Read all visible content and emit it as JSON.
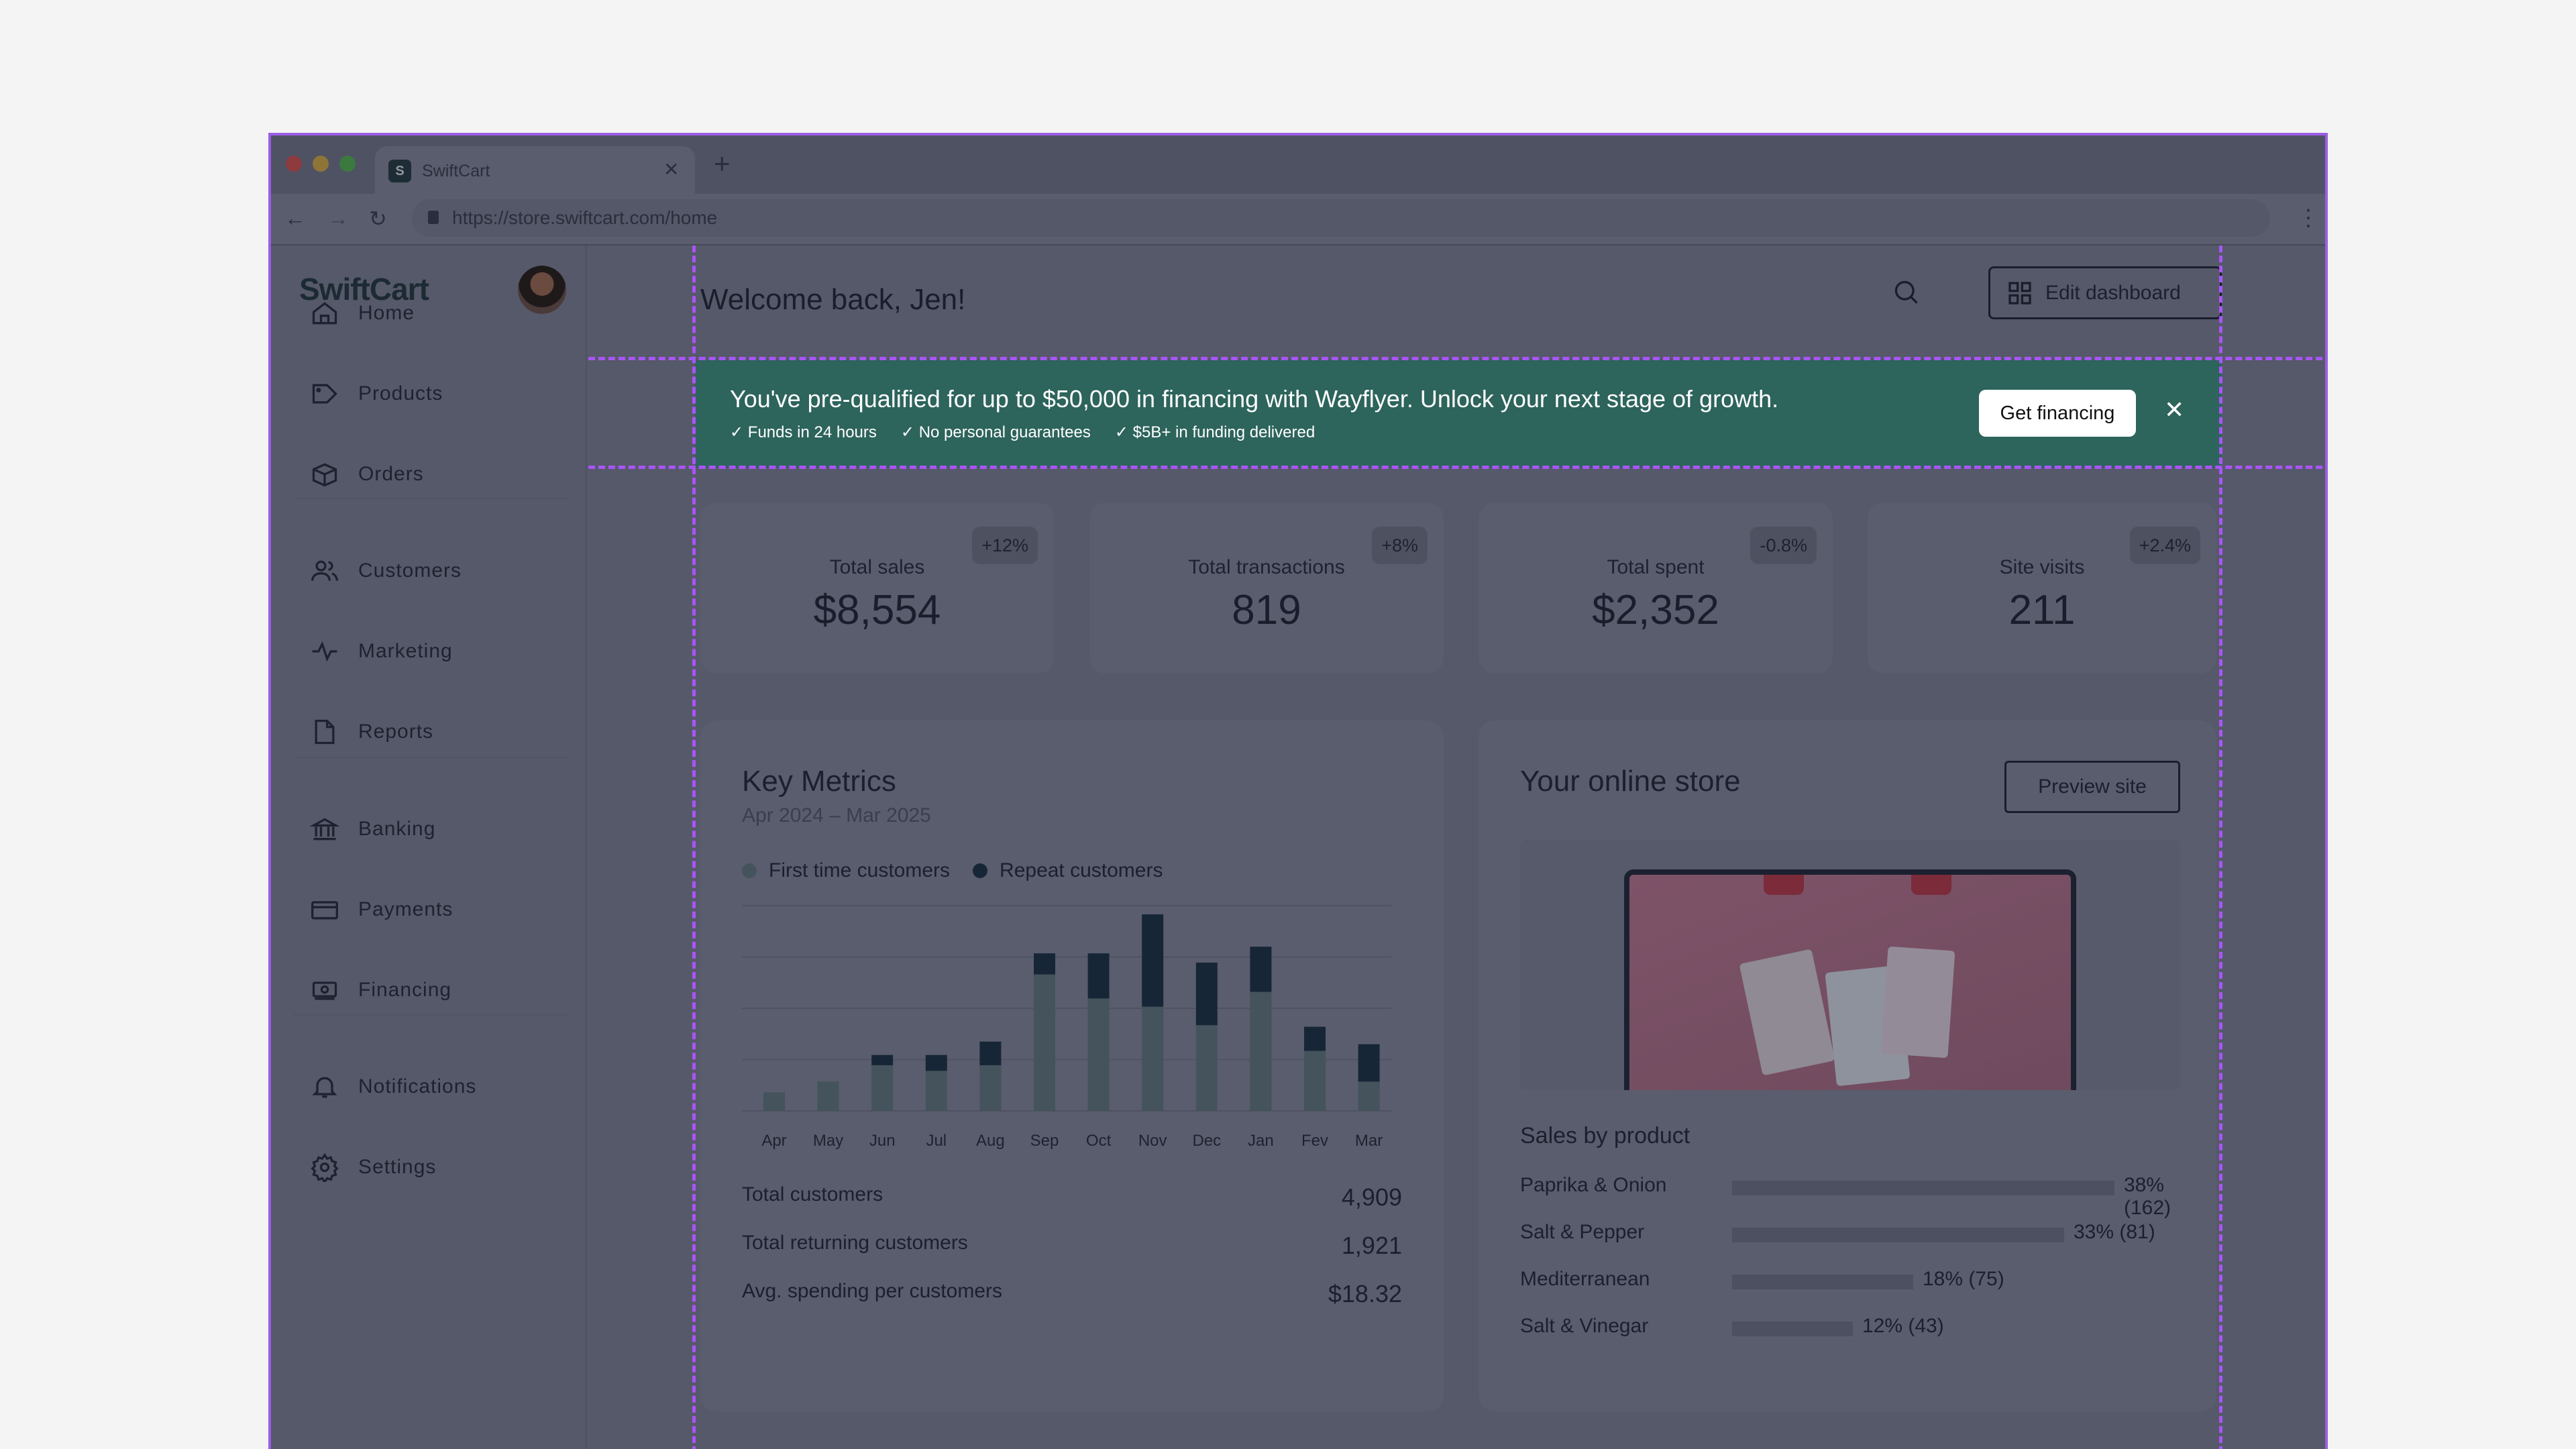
{
  "browser": {
    "tab_title": "SwiftCart",
    "favicon_letter": "S",
    "url": "https://store.swiftcart.com/home"
  },
  "sidebar": {
    "logo": "SwiftCart",
    "items": [
      {
        "label": "Home",
        "icon": "home-icon"
      },
      {
        "label": "Products",
        "icon": "tag-icon"
      },
      {
        "label": "Orders",
        "icon": "box-icon"
      },
      {
        "label": "Customers",
        "icon": "users-icon"
      },
      {
        "label": "Marketing",
        "icon": "activity-icon"
      },
      {
        "label": "Reports",
        "icon": "file-icon"
      },
      {
        "label": "Banking",
        "icon": "bank-icon"
      },
      {
        "label": "Payments",
        "icon": "credit-card-icon"
      },
      {
        "label": "Financing",
        "icon": "cash-icon"
      },
      {
        "label": "Notifications",
        "icon": "bell-icon"
      },
      {
        "label": "Settings",
        "icon": "gear-icon"
      }
    ]
  },
  "header": {
    "welcome": "Welcome back, Jen!",
    "edit_dashboard": "Edit dashboard"
  },
  "banner": {
    "message": "You've pre-qualified for up to $50,000 in financing with Wayflyer. Unlock your next stage of growth.",
    "checks": [
      "Funds in 24 hours",
      "No personal guarantees",
      "$5B+ in funding delivered"
    ],
    "cta": "Get financing",
    "color": "#2d645c"
  },
  "stats": [
    {
      "label": "Total sales",
      "value": "$8,554",
      "change": "+12%"
    },
    {
      "label": "Total transactions",
      "value": "819",
      "change": "+8%"
    },
    {
      "label": "Total spent",
      "value": "$2,352",
      "change": "-0.8%"
    },
    {
      "label": "Site visits",
      "value": "211",
      "change": "+2.4%"
    }
  ],
  "key_metrics": {
    "title": "Key Metrics",
    "period": "Apr 2024 – Mar 2025",
    "rows": [
      {
        "label": "Total customers",
        "value": "4,909"
      },
      {
        "label": "Total returning customers",
        "value": "1,921"
      },
      {
        "label": "Avg. spending per customers",
        "value": "$18.32"
      }
    ]
  },
  "chart_data": {
    "type": "bar",
    "stacked": true,
    "categories": [
      "Apr",
      "May",
      "Jun",
      "Jul",
      "Aug",
      "Sep",
      "Oct",
      "Nov",
      "Dec",
      "Jan",
      "Fev",
      "Mar"
    ],
    "series": [
      {
        "name": "First time customers",
        "color": "#44535c",
        "values": [
          36,
          57,
          89,
          78,
          89,
          266,
          219,
          203,
          167,
          232,
          117,
          57
        ]
      },
      {
        "name": "Repeat customers",
        "color": "#172636",
        "values": [
          0,
          0,
          20,
          31,
          46,
          41,
          88,
          180,
          122,
          88,
          47,
          73
        ]
      }
    ],
    "ylim": [
      0,
      400
    ],
    "grid": true,
    "legend": "top-left",
    "title": "",
    "xlabel": "",
    "ylabel": ""
  },
  "store": {
    "title": "Your online store",
    "preview": "Preview site",
    "sales_title": "Sales by product",
    "products": [
      {
        "name": "Paprika & Onion",
        "pct": 38,
        "label": "38% (162)"
      },
      {
        "name": "Salt & Pepper",
        "pct": 33,
        "label": "33% (81)"
      },
      {
        "name": "Mediterranean",
        "pct": 18,
        "label": "18% (75)"
      },
      {
        "name": "Salt & Vinegar",
        "pct": 12,
        "label": "12% (43)"
      }
    ]
  }
}
